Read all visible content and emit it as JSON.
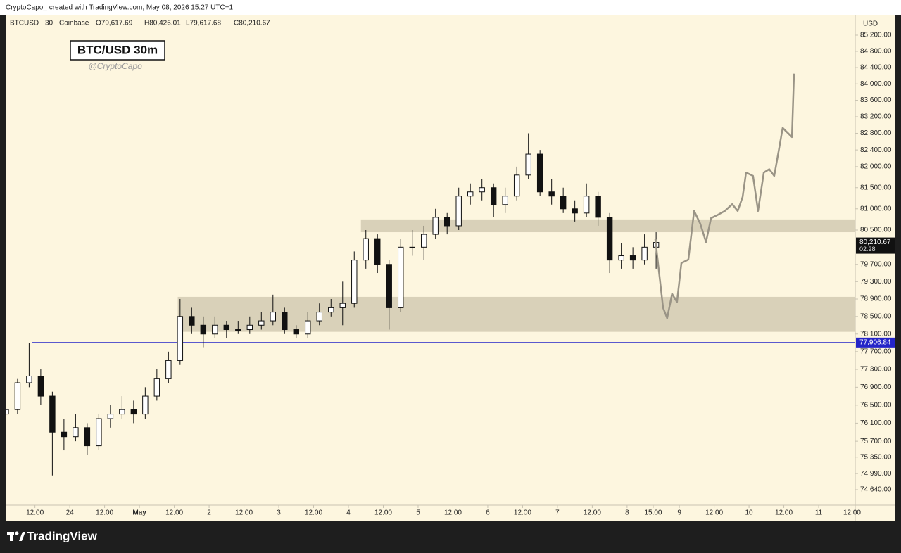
{
  "page": {
    "credit": "CryptoCapo_ created with TradingView.com, May 08, 2026 15:27 UTC+1",
    "brand": "TradingView",
    "symbol": "BTCUSD · 30 · Coinbase",
    "ohlc": [
      "O79,617.69",
      "H80,426.01",
      "L79,617.68",
      "C80,210.67"
    ]
  },
  "chart_data": {
    "type": "candlestick",
    "title": "BTC/USD 30m",
    "subtitle": "@CryptoCapo_",
    "y_unit": "USD",
    "log_scale": true,
    "up_color": "#ffffff",
    "down_color": "#111111",
    "x": [
      2,
      6,
      10,
      14,
      18,
      22,
      26,
      30,
      34,
      38,
      42,
      46,
      50,
      54,
      58,
      62,
      66,
      70,
      74,
      78,
      82,
      86,
      90,
      94,
      98,
      102,
      106,
      110,
      114,
      118,
      122,
      126,
      130,
      134,
      138,
      142,
      146,
      150,
      154,
      158,
      162,
      166,
      170,
      174,
      178,
      182,
      186,
      190,
      194,
      198,
      202,
      206,
      210,
      214,
      218,
      222,
      226
    ],
    "open": [
      76300,
      76400,
      77000,
      77150,
      76700,
      75900,
      75800,
      76000,
      75600,
      76200,
      76300,
      76400,
      76300,
      76700,
      77100,
      77500,
      78500,
      78300,
      78100,
      78300,
      78200,
      78200,
      78300,
      78400,
      78600,
      78200,
      78100,
      78400,
      78600,
      78700,
      78800,
      79800,
      80300,
      79700,
      78700,
      80100,
      80100,
      80400,
      80800,
      80600,
      81300,
      81400,
      81500,
      81100,
      81300,
      81800,
      82300,
      81400,
      81300,
      81000,
      80900,
      81300,
      80800,
      79800,
      79900,
      79800,
      80100
    ],
    "high": [
      76600,
      77100,
      77900,
      77300,
      76800,
      76200,
      76300,
      76100,
      76300,
      76500,
      76700,
      76600,
      76900,
      77300,
      77700,
      78900,
      78700,
      78500,
      78500,
      78400,
      78400,
      78500,
      78600,
      79000,
      78700,
      78300,
      78600,
      78800,
      78900,
      79300,
      80000,
      80500,
      80400,
      79800,
      80300,
      80500,
      80600,
      81000,
      80900,
      81500,
      81600,
      81700,
      81600,
      81500,
      82000,
      82800,
      82400,
      81700,
      81500,
      81200,
      81600,
      81400,
      80900,
      80200,
      80100,
      80400,
      80450
    ],
    "low": [
      76100,
      76300,
      76900,
      76500,
      74950,
      75500,
      75700,
      75400,
      75500,
      76000,
      76200,
      76100,
      76200,
      76600,
      77000,
      77400,
      78100,
      77800,
      78000,
      78000,
      78100,
      78100,
      78200,
      78300,
      78100,
      78000,
      78000,
      78300,
      78500,
      78300,
      78700,
      79600,
      79500,
      78200,
      78600,
      79900,
      79800,
      80300,
      80400,
      80500,
      81100,
      81200,
      80800,
      80900,
      81200,
      81700,
      81300,
      81100,
      80900,
      80700,
      80800,
      80600,
      79500,
      79600,
      79600,
      79700,
      79600
    ],
    "close": [
      76400,
      77000,
      77150,
      76700,
      75900,
      75800,
      76000,
      75600,
      76200,
      76300,
      76400,
      76300,
      76700,
      77100,
      77500,
      78500,
      78300,
      78100,
      78300,
      78200,
      78200,
      78300,
      78400,
      78600,
      78200,
      78100,
      78400,
      78600,
      78700,
      78800,
      79800,
      80300,
      79700,
      78700,
      80100,
      80100,
      80400,
      80800,
      80600,
      81300,
      81400,
      81500,
      81100,
      81300,
      81800,
      82300,
      81400,
      81300,
      81000,
      80900,
      81300,
      80800,
      79800,
      79900,
      79800,
      80100,
      80210.67
    ],
    "xlim": [
      1.9,
      294.6
    ],
    "ylim": [
      74304,
      85690
    ],
    "xticks": [
      {
        "value": 12,
        "label": "12:00"
      },
      24,
      {
        "value": 36,
        "label": "12:00"
      },
      {
        "value": 48,
        "label": "May"
      },
      {
        "value": 60,
        "label": "12:00"
      },
      {
        "value": 72,
        "label": "2"
      },
      {
        "value": 84,
        "label": "12:00"
      },
      {
        "value": 96,
        "label": "3"
      },
      {
        "value": 108,
        "label": "12:00"
      },
      {
        "value": 120,
        "label": "4"
      },
      {
        "value": 132,
        "label": "12:00"
      },
      {
        "value": 144,
        "label": "5"
      },
      {
        "value": 156,
        "label": "12:00"
      },
      {
        "value": 168,
        "label": "6"
      },
      {
        "value": 180,
        "label": "12:00"
      },
      {
        "value": 192,
        "label": "7"
      },
      {
        "value": 204,
        "label": "12:00"
      },
      {
        "value": 216,
        "label": "8"
      },
      {
        "value": 225,
        "label": "15:00"
      },
      {
        "value": 234,
        "label": "9"
      },
      {
        "value": 246,
        "label": "12:00"
      },
      {
        "value": 258,
        "label": "10"
      },
      {
        "value": 270,
        "label": "12:00"
      },
      {
        "value": 282,
        "label": "11"
      },
      {
        "value": 293.5,
        "label": "12:00"
      }
    ],
    "yticks": [
      {
        "value": 85200,
        "label": "85,200.00"
      },
      {
        "value": 84800,
        "label": "84,800.00"
      },
      {
        "value": 84400,
        "label": "84,400.00"
      },
      {
        "value": 84000,
        "label": "84,000.00"
      },
      {
        "value": 83600,
        "label": "83,600.00"
      },
      {
        "value": 83200,
        "label": "83,200.00"
      },
      {
        "value": 82800,
        "label": "82,800.00"
      },
      {
        "value": 82400,
        "label": "82,400.00"
      },
      {
        "value": 82000,
        "label": "82,000.00"
      },
      {
        "value": 81500,
        "label": "81,500.00"
      },
      {
        "value": 81000,
        "label": "81,000.00"
      },
      {
        "value": 80500,
        "label": "80,500.00"
      },
      {
        "value": 79700,
        "label": "79,700.00"
      },
      {
        "value": 79300,
        "label": "79,300.00"
      },
      {
        "value": 78900,
        "label": "78,900.00"
      },
      {
        "value": 78500,
        "label": "78,500.00"
      },
      {
        "value": 78100,
        "label": "78,100.00"
      },
      {
        "value": 77700,
        "label": "77,700.00"
      },
      {
        "value": 77300,
        "label": "77,300.00"
      },
      {
        "value": 76900,
        "label": "76,900.00"
      },
      {
        "value": 76500,
        "label": "76,500.00"
      },
      {
        "value": 76100,
        "label": "76,100.00"
      },
      {
        "value": 75700,
        "label": "75,700.00"
      },
      {
        "value": 75350,
        "label": "75,350.00"
      },
      {
        "value": 74990,
        "label": "74,990.00"
      },
      {
        "value": 74640,
        "label": "74,640.00"
      }
    ],
    "zones": [
      {
        "from": 80450,
        "to": 80750,
        "x_start": 124.3,
        "color": "#d2cab3"
      },
      {
        "from": 78150,
        "to": 78950,
        "x_start": 61.2,
        "color": "#d2cab3"
      }
    ],
    "level": {
      "value": 77906.84,
      "label": "77,906.84",
      "x_start": 10.9,
      "color": "#2424c8"
    },
    "current_price": {
      "value": 80210.67,
      "label": "80,210.67",
      "countdown": "02:28"
    },
    "projection": {
      "color": "#9a9486",
      "x": [
        225.7,
        228.4,
        229.8,
        231.5,
        233.2,
        234.7,
        237.1,
        239.1,
        241.2,
        243.2,
        244.9,
        247.3,
        249.7,
        252.2,
        254.1,
        255.8,
        257.0,
        259.4,
        261.1,
        263.1,
        265.0,
        266.7,
        268.4,
        269.6,
        272.8,
        273.5
      ],
      "y": [
        80300,
        78700,
        78460,
        79020,
        78830,
        79730,
        79810,
        80950,
        80650,
        80220,
        80780,
        80860,
        80950,
        81110,
        80950,
        81280,
        81860,
        81780,
        80950,
        81860,
        81940,
        81780,
        82450,
        82930,
        82710,
        84250
      ]
    }
  }
}
